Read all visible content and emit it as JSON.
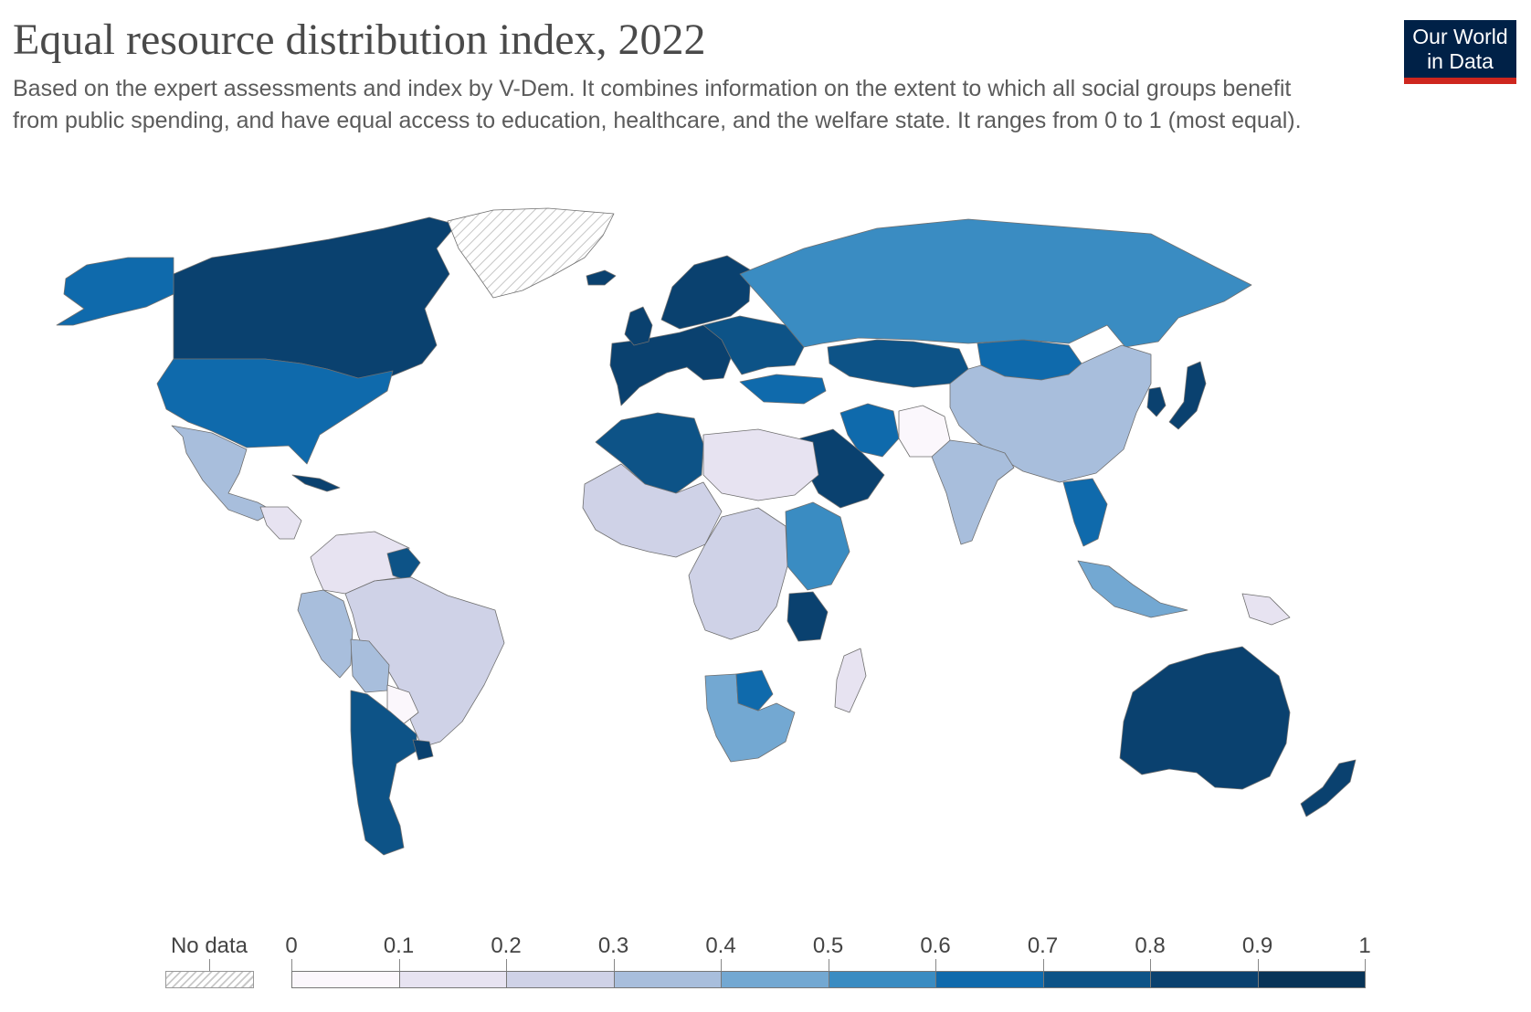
{
  "header": {
    "title": "Equal resource distribution index, 2022",
    "subtitle": "Based on the expert assessments and index by V-Dem. It combines information on the extent to which all social groups benefit from public spending, and have equal access to education, healthcare, and the welfare state. It ranges from 0 to 1 (most equal)."
  },
  "logo": {
    "line1": "Our World",
    "line2": "in Data"
  },
  "legend": {
    "no_data_label": "No data",
    "bins": [
      {
        "from": "0",
        "to": "0.1",
        "color": "#fbf7fc"
      },
      {
        "from": "0.1",
        "to": "0.2",
        "color": "#e7e3f1"
      },
      {
        "from": "0.2",
        "to": "0.3",
        "color": "#cfd2e7"
      },
      {
        "from": "0.3",
        "to": "0.4",
        "color": "#a8bedc"
      },
      {
        "from": "0.4",
        "to": "0.5",
        "color": "#73a8d2"
      },
      {
        "from": "0.5",
        "to": "0.6",
        "color": "#3a8cc2"
      },
      {
        "from": "0.6",
        "to": "0.7",
        "color": "#0f6aac"
      },
      {
        "from": "0.7",
        "to": "0.8",
        "color": "#0d5387"
      },
      {
        "from": "0.8",
        "to": "0.9",
        "color": "#0a416f"
      },
      {
        "from": "0.9",
        "to": "1",
        "color": "#083458"
      }
    ],
    "tick_labels": [
      "0",
      "0.1",
      "0.2",
      "0.3",
      "0.4",
      "0.5",
      "0.6",
      "0.7",
      "0.8",
      "0.9",
      "1"
    ]
  },
  "regions": [
    {
      "name": "canada",
      "bin": 8
    },
    {
      "name": "alaska",
      "bin": 6
    },
    {
      "name": "greenland",
      "bin": null
    },
    {
      "name": "united-states",
      "bin": 6
    },
    {
      "name": "mexico",
      "bin": 3
    },
    {
      "name": "central-america",
      "bin": 1
    },
    {
      "name": "cuba",
      "bin": 8
    },
    {
      "name": "colombia-venezuela",
      "bin": 1
    },
    {
      "name": "guyana-suriname",
      "bin": 7
    },
    {
      "name": "brazil",
      "bin": 2
    },
    {
      "name": "peru-ecuador",
      "bin": 3
    },
    {
      "name": "bolivia",
      "bin": 3
    },
    {
      "name": "paraguay",
      "bin": 0
    },
    {
      "name": "argentina-chile",
      "bin": 7
    },
    {
      "name": "uruguay",
      "bin": 8
    },
    {
      "name": "western-europe",
      "bin": 8
    },
    {
      "name": "scandinavia",
      "bin": 8
    },
    {
      "name": "uk-ireland",
      "bin": 8
    },
    {
      "name": "iceland",
      "bin": 8
    },
    {
      "name": "eastern-europe",
      "bin": 7
    },
    {
      "name": "russia",
      "bin": 5
    },
    {
      "name": "kazakhstan",
      "bin": 7
    },
    {
      "name": "mongolia",
      "bin": 6
    },
    {
      "name": "china",
      "bin": 3
    },
    {
      "name": "india",
      "bin": 3
    },
    {
      "name": "iran",
      "bin": 6
    },
    {
      "name": "turkey",
      "bin": 6
    },
    {
      "name": "saudi-arabia",
      "bin": 8
    },
    {
      "name": "afghanistan-pakistan",
      "bin": 0
    },
    {
      "name": "southeast-asia",
      "bin": 6
    },
    {
      "name": "japan",
      "bin": 8
    },
    {
      "name": "korea",
      "bin": 8
    },
    {
      "name": "indonesia",
      "bin": 4
    },
    {
      "name": "papua-new-guinea",
      "bin": 1
    },
    {
      "name": "australia",
      "bin": 8
    },
    {
      "name": "new-zealand",
      "bin": 8
    },
    {
      "name": "algeria-morocco",
      "bin": 7
    },
    {
      "name": "sahel-north-africa",
      "bin": 1
    },
    {
      "name": "west-africa",
      "bin": 2
    },
    {
      "name": "central-africa",
      "bin": 2
    },
    {
      "name": "east-africa",
      "bin": 5
    },
    {
      "name": "tanzania",
      "bin": 8
    },
    {
      "name": "southern-africa",
      "bin": 4
    },
    {
      "name": "botswana",
      "bin": 6
    },
    {
      "name": "madagascar",
      "bin": 1
    }
  ]
}
